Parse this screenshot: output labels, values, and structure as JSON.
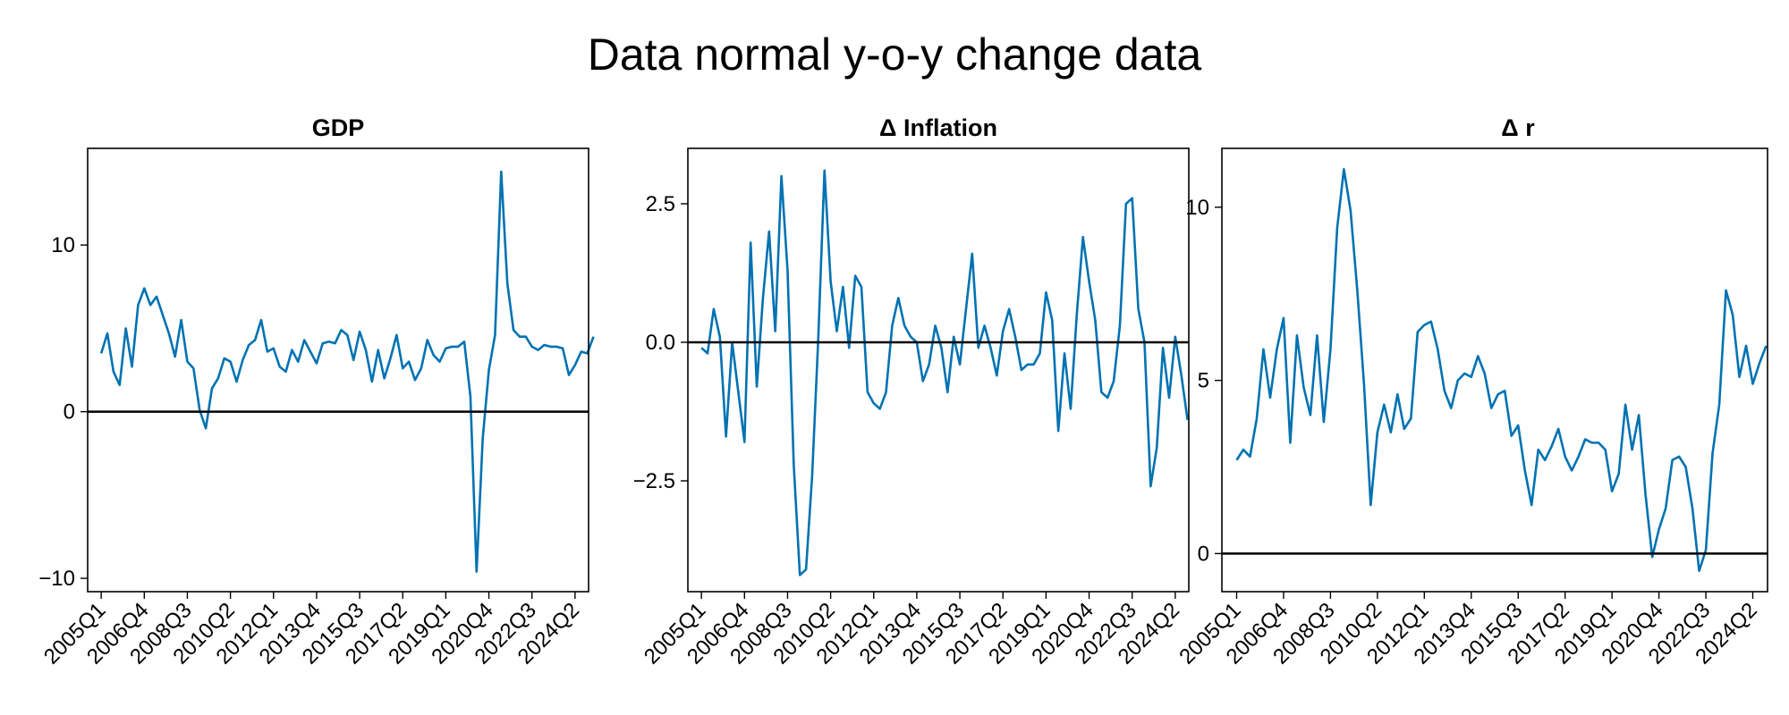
{
  "title": "Data normal y-o-y change data",
  "x_ticks": [
    "2005Q1",
    "2006Q4",
    "2008Q3",
    "2010Q2",
    "2012Q1",
    "2013Q4",
    "2015Q3",
    "2017Q2",
    "2019Q1",
    "2020Q4",
    "2022Q3",
    "2024Q2"
  ],
  "colors": {
    "line": "#0072b2",
    "axis": "#000000"
  },
  "chart_data": [
    {
      "type": "line",
      "title": "GDP",
      "xlabel": "",
      "ylabel": "",
      "ylim": [
        -10.8,
        15.8
      ],
      "yticks": [
        -10,
        0,
        10
      ],
      "ytick_labels": [
        "−10",
        "0",
        "10"
      ],
      "xlim": [
        -2.2,
        79.2
      ],
      "hline": 0,
      "x_start": "2005Q1",
      "values": [
        3.5,
        4.7,
        2.4,
        1.6,
        5.0,
        2.7,
        6.4,
        7.4,
        6.4,
        6.9,
        5.8,
        4.7,
        3.3,
        5.5,
        3.0,
        2.6,
        0.1,
        -1.0,
        1.4,
        2.0,
        3.2,
        3.0,
        1.8,
        3.1,
        4.0,
        4.3,
        5.5,
        3.6,
        3.8,
        2.7,
        2.4,
        3.7,
        3.0,
        4.3,
        3.6,
        2.9,
        4.1,
        4.2,
        4.1,
        4.9,
        4.6,
        3.1,
        4.8,
        3.7,
        1.8,
        3.7,
        2.0,
        3.2,
        4.6,
        2.6,
        3.0,
        1.9,
        2.6,
        4.3,
        3.4,
        3.0,
        3.8,
        3.9,
        3.9,
        4.2,
        0.9,
        -9.6,
        -1.6,
        2.5,
        4.6,
        14.4,
        7.7,
        4.9,
        4.5,
        4.5,
        3.9,
        3.7,
        4.0,
        3.9,
        3.9,
        3.8,
        2.2,
        2.8,
        3.6,
        3.5,
        4.5
      ]
    },
    {
      "type": "line",
      "title": "Δ Inflation",
      "xlabel": "",
      "ylabel": "",
      "ylim": [
        -4.5,
        3.5
      ],
      "yticks": [
        -2.5,
        0.0,
        2.5
      ],
      "ytick_labels": [
        "−2.5",
        "0.0",
        "2.5"
      ],
      "xlim": [
        -2.2,
        79.2
      ],
      "hline": 0,
      "x_start": "2005Q1",
      "values": [
        -0.1,
        -0.2,
        0.6,
        0.1,
        -1.7,
        0.0,
        -0.9,
        -1.8,
        1.8,
        -0.8,
        0.8,
        2.0,
        0.2,
        3.0,
        1.3,
        -2.2,
        -4.2,
        -4.1,
        -2.4,
        0.1,
        3.1,
        1.1,
        0.2,
        1.0,
        -0.1,
        1.2,
        1.0,
        -0.9,
        -1.1,
        -1.2,
        -0.9,
        0.3,
        0.8,
        0.3,
        0.1,
        0.0,
        -0.7,
        -0.4,
        0.3,
        -0.1,
        -0.9,
        0.1,
        -0.4,
        0.6,
        1.6,
        -0.1,
        0.3,
        -0.1,
        -0.6,
        0.2,
        0.6,
        0.1,
        -0.5,
        -0.4,
        -0.4,
        -0.2,
        0.9,
        0.4,
        -1.6,
        -0.2,
        -1.2,
        0.5,
        1.9,
        1.1,
        0.4,
        -0.9,
        -1.0,
        -0.7,
        0.3,
        2.5,
        2.6,
        0.6,
        0.0,
        -2.6,
        -1.9,
        -0.1,
        -1.0,
        0.1,
        -0.6,
        -1.4
      ]
    },
    {
      "type": "line",
      "title": "Δ r",
      "xlabel": "",
      "ylabel": "",
      "ylim": [
        -1.1,
        11.7
      ],
      "yticks": [
        0,
        5,
        10
      ],
      "ytick_labels": [
        "0",
        "5",
        "10"
      ],
      "xlim": [
        -2.2,
        79.2
      ],
      "hline": 0,
      "x_start": "2005Q1",
      "values": [
        2.7,
        3.0,
        2.8,
        3.9,
        5.9,
        4.5,
        5.9,
        6.8,
        3.2,
        6.3,
        4.8,
        4.0,
        6.3,
        3.8,
        5.9,
        9.4,
        11.1,
        9.9,
        7.6,
        4.9,
        1.4,
        3.5,
        4.3,
        3.5,
        4.6,
        3.6,
        3.9,
        6.4,
        6.6,
        6.7,
        5.9,
        4.7,
        4.2,
        5.0,
        5.2,
        5.1,
        5.7,
        5.2,
        4.2,
        4.6,
        4.7,
        3.4,
        3.7,
        2.4,
        1.4,
        3.0,
        2.7,
        3.1,
        3.6,
        2.8,
        2.4,
        2.8,
        3.3,
        3.2,
        3.2,
        3.0,
        1.8,
        2.3,
        4.3,
        3.0,
        4.0,
        1.7,
        -0.1,
        0.7,
        1.3,
        2.7,
        2.8,
        2.5,
        1.3,
        -0.5,
        0.1,
        2.9,
        4.3,
        7.6,
        6.9,
        5.1,
        6.0,
        4.9,
        5.5,
        6.0
      ]
    }
  ]
}
